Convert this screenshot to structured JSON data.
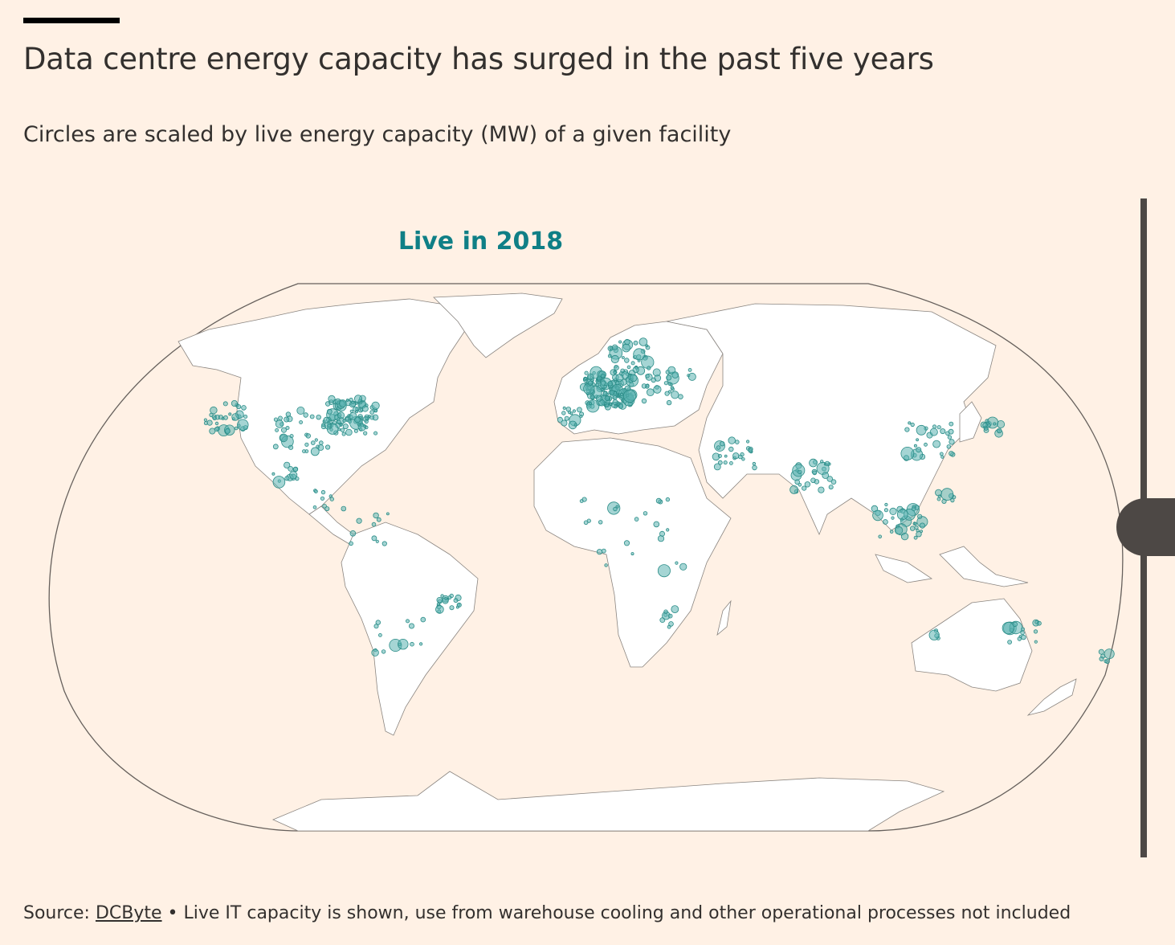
{
  "header": {
    "title": "Data centre energy capacity has surged in the past five years",
    "subtitle": "Circles are scaled by live energy capacity (MW) of a given facility"
  },
  "map": {
    "year_label": "Live in 2018",
    "colors": {
      "background": "#FFF1E5",
      "land": "#FFFFFF",
      "border": "#8A8580",
      "circle_fill": "#5BB3B0",
      "circle_stroke": "#2A8C87"
    },
    "clusters": [
      {
        "region": "North America east",
        "lon": -78,
        "lat": 40,
        "spread": 6,
        "count": 90
      },
      {
        "region": "North America west",
        "lon": -120,
        "lat": 40,
        "spread": 5,
        "count": 35
      },
      {
        "region": "North America central",
        "lon": -95,
        "lat": 35,
        "spread": 7,
        "count": 40
      },
      {
        "region": "Mexico",
        "lon": -100,
        "lat": 21,
        "spread": 3,
        "count": 12
      },
      {
        "region": "Central America",
        "lon": -85,
        "lat": 12,
        "spread": 4,
        "count": 10
      },
      {
        "region": "South America north",
        "lon": -70,
        "lat": 3,
        "spread": 6,
        "count": 10
      },
      {
        "region": "Brazil southeast",
        "lon": -46,
        "lat": -22,
        "spread": 3,
        "count": 18
      },
      {
        "region": "Southern Cone",
        "lon": -62,
        "lat": -33,
        "spread": 6,
        "count": 14
      },
      {
        "region": "Europe",
        "lon": 8,
        "lat": 49,
        "spread": 6,
        "count": 160
      },
      {
        "region": "Scandinavia",
        "lon": 15,
        "lat": 60,
        "spread": 5,
        "count": 35
      },
      {
        "region": "Iberia",
        "lon": -5,
        "lat": 40,
        "spread": 3,
        "count": 15
      },
      {
        "region": "Eastern Europe",
        "lon": 28,
        "lat": 50,
        "spread": 6,
        "count": 30
      },
      {
        "region": "Middle East",
        "lon": 50,
        "lat": 27,
        "spread": 5,
        "count": 25
      },
      {
        "region": "Africa",
        "lon": 15,
        "lat": 2,
        "spread": 14,
        "count": 25
      },
      {
        "region": "South Africa",
        "lon": 28,
        "lat": -27,
        "spread": 3,
        "count": 8
      },
      {
        "region": "India",
        "lon": 77,
        "lat": 20,
        "spread": 5,
        "count": 28
      },
      {
        "region": "China",
        "lon": 115,
        "lat": 32,
        "spread": 6,
        "count": 30
      },
      {
        "region": "Japan",
        "lon": 137,
        "lat": 36,
        "spread": 2.5,
        "count": 15
      },
      {
        "region": "Southeast Asia",
        "lon": 105,
        "lat": 5,
        "spread": 6,
        "count": 35
      },
      {
        "region": "Philippines",
        "lon": 121,
        "lat": 13,
        "spread": 2,
        "count": 8
      },
      {
        "region": "Australia east",
        "lon": 147,
        "lat": -32,
        "spread": 4,
        "count": 16
      },
      {
        "region": "Australia west",
        "lon": 116,
        "lat": -32,
        "spread": 2,
        "count": 4
      },
      {
        "region": "New Zealand",
        "lon": 174,
        "lat": -40,
        "spread": 2,
        "count": 6
      }
    ]
  },
  "footer": {
    "source_prefix": "Source: ",
    "source_link": "DCByte",
    "note": " • Live IT capacity is shown, use from warehouse cooling and other operational processes not included"
  }
}
